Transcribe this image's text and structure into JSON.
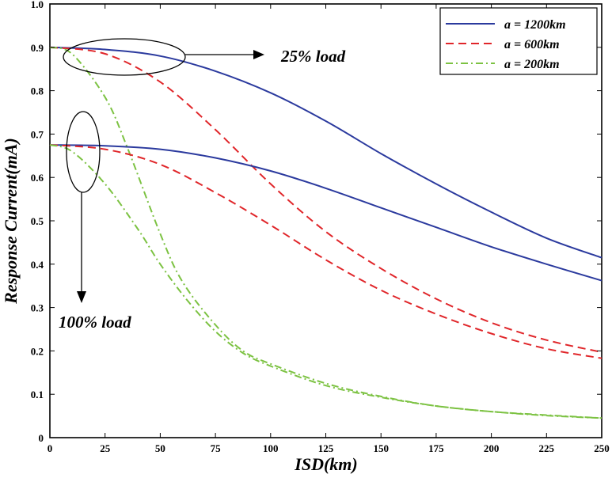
{
  "chart_data": {
    "type": "line",
    "title": "",
    "xlabel": "ISD(km)",
    "ylabel": "Response Current(mA)",
    "xlim": [
      0,
      250
    ],
    "ylim": [
      0,
      1.0
    ],
    "xticks": [
      0,
      25,
      50,
      75,
      100,
      125,
      150,
      175,
      200,
      225,
      250
    ],
    "yticks": [
      0,
      0.1,
      0.2,
      0.3,
      0.4,
      0.5,
      0.6,
      0.7,
      0.8,
      0.9,
      1.0
    ],
    "ytick_labels": [
      "0",
      "0.1",
      "0.2",
      "0.3",
      "0.4",
      "0.5",
      "0.6",
      "0.7",
      "0.8",
      "0.9",
      "1.0"
    ],
    "grid": false,
    "legend_position": "top-right",
    "legend": [
      {
        "label": "a = 1200km",
        "color": "#2b3a9e",
        "dash": "solid"
      },
      {
        "label": "a = 600km",
        "color": "#e0262a",
        "dash": "dashed"
      },
      {
        "label": "a = 200km",
        "color": "#7cc242",
        "dash": "dashdot"
      }
    ],
    "series": [
      {
        "group": "25% load",
        "legend_index": 0,
        "x": [
          0,
          25,
          50,
          75,
          100,
          125,
          150,
          175,
          200,
          225,
          250
        ],
        "y": [
          0.9,
          0.895,
          0.88,
          0.845,
          0.795,
          0.73,
          0.655,
          0.585,
          0.52,
          0.46,
          0.415
        ]
      },
      {
        "group": "25% load",
        "legend_index": 1,
        "x": [
          0,
          25,
          50,
          75,
          100,
          125,
          150,
          175,
          200,
          225,
          250
        ],
        "y": [
          0.9,
          0.885,
          0.82,
          0.71,
          0.585,
          0.475,
          0.39,
          0.32,
          0.265,
          0.225,
          0.197
        ]
      },
      {
        "group": "25% load",
        "legend_index": 2,
        "x": [
          0,
          10,
          25,
          35,
          50,
          60,
          75,
          87.5,
          100,
          125,
          150,
          175,
          200,
          225,
          250
        ],
        "y": [
          0.9,
          0.885,
          0.785,
          0.67,
          0.47,
          0.36,
          0.26,
          0.2,
          0.17,
          0.125,
          0.095,
          0.073,
          0.06,
          0.052,
          0.045
        ]
      },
      {
        "group": "100% load",
        "legend_index": 0,
        "x": [
          0,
          25,
          50,
          75,
          100,
          125,
          150,
          175,
          200,
          225,
          250
        ],
        "y": [
          0.675,
          0.673,
          0.665,
          0.645,
          0.615,
          0.575,
          0.53,
          0.485,
          0.44,
          0.4,
          0.362
        ]
      },
      {
        "group": "100% load",
        "legend_index": 1,
        "x": [
          0,
          25,
          50,
          75,
          100,
          125,
          150,
          175,
          200,
          225,
          250
        ],
        "y": [
          0.675,
          0.665,
          0.63,
          0.565,
          0.49,
          0.41,
          0.34,
          0.285,
          0.24,
          0.205,
          0.183
        ]
      },
      {
        "group": "100% load",
        "legend_index": 2,
        "x": [
          0,
          10,
          25,
          40,
          50,
          62.5,
          75,
          87.5,
          100,
          125,
          150,
          175,
          200,
          225,
          250
        ],
        "y": [
          0.675,
          0.66,
          0.585,
          0.48,
          0.4,
          0.315,
          0.245,
          0.195,
          0.165,
          0.12,
          0.093,
          0.073,
          0.06,
          0.051,
          0.045
        ]
      }
    ],
    "annotations": [
      {
        "text": "25% load"
      },
      {
        "text": "100% load"
      }
    ]
  }
}
